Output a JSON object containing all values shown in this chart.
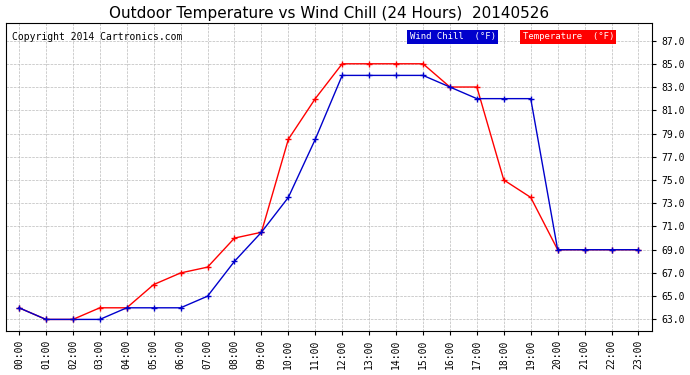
{
  "title": "Outdoor Temperature vs Wind Chill (24 Hours)  20140526",
  "copyright": "Copyright 2014 Cartronics.com",
  "background_color": "#ffffff",
  "plot_background": "#ffffff",
  "grid_color": "#bbbbbb",
  "x_labels": [
    "00:00",
    "01:00",
    "02:00",
    "03:00",
    "04:00",
    "05:00",
    "06:00",
    "07:00",
    "08:00",
    "09:00",
    "10:00",
    "11:00",
    "12:00",
    "13:00",
    "14:00",
    "15:00",
    "16:00",
    "17:00",
    "18:00",
    "19:00",
    "20:00",
    "21:00",
    "22:00",
    "23:00"
  ],
  "y_ticks": [
    63.0,
    65.0,
    67.0,
    69.0,
    71.0,
    73.0,
    75.0,
    77.0,
    79.0,
    81.0,
    83.0,
    85.0,
    87.0
  ],
  "ylim": [
    62.0,
    88.5
  ],
  "temperature": [
    64.0,
    63.0,
    63.0,
    64.0,
    64.0,
    66.0,
    67.0,
    67.5,
    70.0,
    70.5,
    78.5,
    82.0,
    85.0,
    85.0,
    85.0,
    85.0,
    83.0,
    83.0,
    75.0,
    73.5,
    69.0,
    69.0,
    69.0,
    69.0
  ],
  "wind_chill": [
    64.0,
    63.0,
    63.0,
    63.0,
    64.0,
    64.0,
    64.0,
    65.0,
    68.0,
    70.5,
    73.5,
    78.5,
    84.0,
    84.0,
    84.0,
    84.0,
    83.0,
    82.0,
    82.0,
    82.0,
    69.0,
    69.0,
    69.0,
    69.0
  ],
  "temp_color": "#ff0000",
  "wind_color": "#0000cc",
  "legend_wind_bg": "#0000cc",
  "legend_temp_bg": "#ff0000",
  "legend_text_color": "#ffffff",
  "title_fontsize": 11,
  "tick_fontsize": 7,
  "copyright_fontsize": 7
}
